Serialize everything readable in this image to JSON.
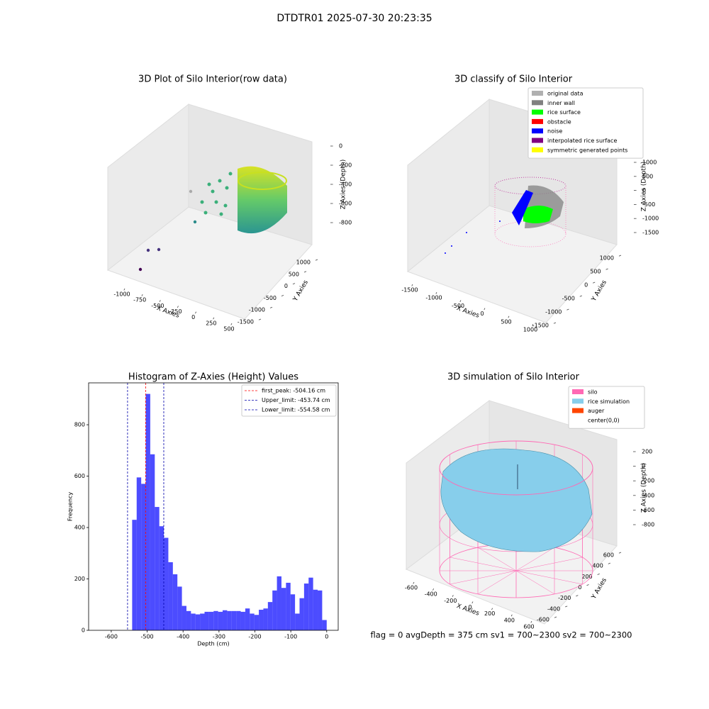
{
  "title": "DTDTR01 2025-07-30 20:23:35",
  "annotation": "flag = 0     avgDepth = 375 cm  sv1 = 700~2300  sv2 = 700~2300",
  "chart_data": [
    {
      "type": "scatter3d",
      "title": "3D Plot of Silo Interior(row data)",
      "xlabel": "X Axies",
      "ylabel": "Y Axies",
      "zlabel": "Z Axies (Depth)",
      "xticks": [
        -1000,
        -750,
        -500,
        -250,
        0,
        250,
        500
      ],
      "yticks": [
        -1500,
        -1000,
        -500,
        0,
        500,
        1000
      ],
      "zticks": [
        -800,
        -600,
        -400,
        -200,
        0
      ]
    },
    {
      "type": "classify3d",
      "title": "3D classify of Silo Interior",
      "xlabel": "X Axies",
      "ylabel": "Y Axies",
      "zlabel": "Z Axies (Depth)",
      "xticks": [
        -1500,
        -1000,
        -500,
        0,
        500,
        1000
      ],
      "yticks": [
        -1500,
        -1000,
        -500,
        0,
        500,
        1000
      ],
      "zticks": [
        -1500,
        -1000,
        -500,
        0,
        500,
        1000
      ],
      "legend": [
        {
          "name": "original data",
          "color": "#b0b0b0"
        },
        {
          "name": "inner wall",
          "color": "#808080"
        },
        {
          "name": "rice surface",
          "color": "#00ff00"
        },
        {
          "name": "obstacle",
          "color": "#ff0000"
        },
        {
          "name": "noise",
          "color": "#0000ff"
        },
        {
          "name": "interpolated rice surface",
          "color": "#800080"
        },
        {
          "name": "symmetric generated points",
          "color": "#ffff00"
        }
      ]
    },
    {
      "type": "histogram",
      "title": "Histogram of Z-Axies (Height) Values",
      "xlabel": "Depth (cm)",
      "ylabel": "Frequency",
      "color": "#0000ff",
      "bins": [
        -541.8,
        -529.2,
        -516.6,
        -504.0,
        -491.4,
        -478.8,
        -466.2,
        -453.6,
        -441.0,
        -428.4,
        -415.8,
        -403.2,
        -390.6,
        -378.0,
        -365.4,
        -352.8,
        -340.2,
        -327.6,
        -315.0,
        -302.4,
        -289.8,
        -277.2,
        -264.6,
        -252.0,
        -239.4,
        -226.8,
        -214.2,
        -201.6,
        -189.0,
        -176.4,
        -163.8,
        -151.2,
        -138.6,
        -126.0,
        -113.4,
        -100.8,
        -88.2,
        -75.6,
        -63.0,
        -50.4,
        -37.8,
        -25.2,
        -12.6,
        0
      ],
      "counts": [
        430,
        595,
        570,
        920,
        685,
        480,
        405,
        360,
        265,
        218,
        170,
        95,
        75,
        65,
        62,
        65,
        72,
        72,
        75,
        72,
        78,
        75,
        75,
        75,
        72,
        85,
        65,
        60,
        80,
        85,
        110,
        155,
        210,
        165,
        185,
        140,
        65,
        125,
        182,
        205,
        158,
        155,
        40
      ],
      "xlim": [
        -663,
        32
      ],
      "ylim": [
        0,
        963
      ],
      "xticks": [
        -600,
        -500,
        -400,
        -300,
        -200,
        -100,
        0
      ],
      "yticks": [
        0,
        200,
        400,
        600,
        800
      ],
      "lines": [
        {
          "label": "first_peak: -504.16 cm",
          "value": -504.16,
          "color": "#ff0000"
        },
        {
          "label": "Upper_limit: -453.74 cm",
          "value": -453.74,
          "color": "#0000aa"
        },
        {
          "label": "Lower_limit: -554.58 cm",
          "value": -554.58,
          "color": "#0000aa"
        }
      ]
    },
    {
      "type": "surface3d",
      "title": "3D simulation of Silo Interior",
      "xlabel": "X Axies",
      "ylabel": "Y Axies",
      "zlabel": "Z Axies (Depth)",
      "xticks": [
        -600,
        -400,
        -200,
        0,
        200,
        400,
        600
      ],
      "yticks": [
        -600,
        -400,
        -200,
        0,
        200,
        400,
        600
      ],
      "zticks": [
        -800,
        -600,
        -400,
        -200,
        0,
        200
      ],
      "legend": [
        {
          "name": "silo",
          "color": "#ff69b4"
        },
        {
          "name": "rice simulation",
          "color": "#87ceeb"
        },
        {
          "name": "auger",
          "color": "#ff4500"
        },
        {
          "name": "center(0,0)",
          "color": "#ffffff"
        }
      ]
    }
  ]
}
